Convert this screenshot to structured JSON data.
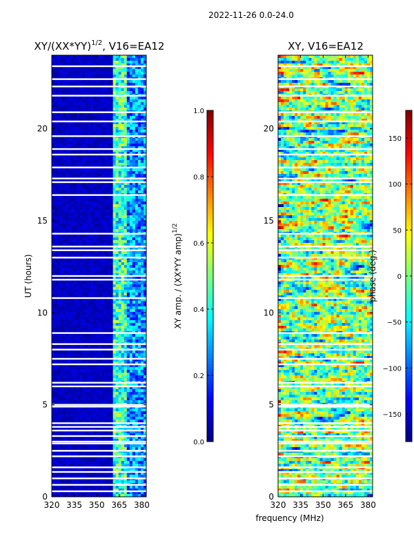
{
  "figure": {
    "suptitle": "2022-11-26 0.0-24.0"
  },
  "chart_data": [
    {
      "type": "heatmap",
      "title_main": "XY/(XX*YY)",
      "title_exp": "1/2",
      "title_rest": ", V16=EA12",
      "xlabel": "",
      "ylabel": "UT (hours)",
      "xlim": [
        320,
        383
      ],
      "ylim": [
        0,
        24
      ],
      "xticks": [
        320,
        335,
        350,
        365,
        380
      ],
      "yticks": [
        0,
        5,
        10,
        15,
        20
      ],
      "xtick_labels": [
        "320",
        "335",
        "350",
        "365",
        "380"
      ],
      "ytick_labels": [
        "0",
        "5",
        "10",
        "15",
        "20"
      ],
      "colorbar": {
        "label_main": "XY amp. / (XX*YY amp)",
        "label_exp": "1/2",
        "range": [
          0.0,
          1.0
        ],
        "ticks": [
          0.0,
          0.2,
          0.4,
          0.6,
          0.8,
          1.0
        ],
        "tick_labels": [
          "0.0",
          "0.2",
          "0.4",
          "0.6",
          "0.8",
          "1.0"
        ],
        "colormap": "jet"
      }
    },
    {
      "type": "heatmap",
      "title": "XY, V16=EA12",
      "xlabel": "frequency (MHz)",
      "ylabel": "",
      "xlim": [
        320,
        383
      ],
      "ylim": [
        0,
        24
      ],
      "xticks": [
        320,
        335,
        350,
        365,
        380
      ],
      "yticks": [
        0,
        5,
        10,
        15,
        20
      ],
      "xtick_labels": [
        "320",
        "335",
        "350",
        "365",
        "380"
      ],
      "ytick_labels": [
        "0",
        "5",
        "10",
        "15",
        "20"
      ],
      "colorbar": {
        "label": "phase (deg.)",
        "range": [
          -180,
          180
        ],
        "ticks": [
          -150,
          -100,
          -50,
          0,
          50,
          100,
          150
        ],
        "tick_labels": [
          "−150",
          "−100",
          "−50",
          "0",
          "50",
          "100",
          "150"
        ],
        "colormap": "jet"
      }
    }
  ]
}
